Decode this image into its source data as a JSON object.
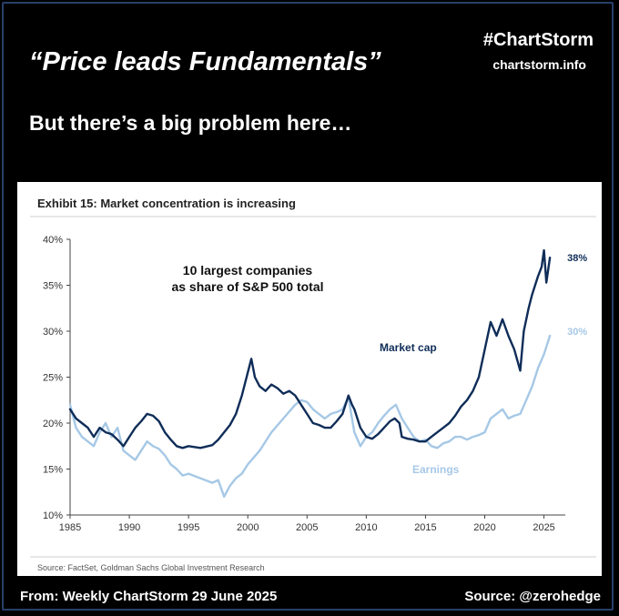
{
  "header": {
    "quote": "“Price leads Fundamentals”",
    "brand": "#ChartStorm",
    "site": "chartstorm.info",
    "subtitle": "But there’s a big problem here…"
  },
  "footer": {
    "left": "From: Weekly ChartStorm 29 June 2025",
    "right": "Source: @zerohedge"
  },
  "colors": {
    "market_cap": "#0f2d58",
    "earnings": "#a6c8e6",
    "axis": "#444444",
    "frame": "#27406a"
  },
  "chart_data": {
    "type": "line",
    "title": "Exhibit 15: Market concentration is increasing",
    "annotation": [
      "10 largest companies",
      "as share of S&P 500 total"
    ],
    "source": "Source: FactSet, Goldman Sachs Global Investment Research",
    "xlim": [
      1985,
      2026.8
    ],
    "ylim": [
      10,
      40
    ],
    "x_ticks": [
      1985,
      1990,
      1995,
      2000,
      2005,
      2010,
      2015,
      2020,
      2025
    ],
    "y_ticks": [
      10,
      15,
      20,
      25,
      30,
      35,
      40
    ],
    "y_tick_labels": [
      "10%",
      "15%",
      "20%",
      "25%",
      "30%",
      "35%",
      "40%"
    ],
    "series": [
      {
        "name": "Market cap",
        "end_label": "38%",
        "points": [
          [
            1985,
            21.5
          ],
          [
            1985.5,
            20.5
          ],
          [
            1986,
            20
          ],
          [
            1986.5,
            19.5
          ],
          [
            1987,
            18.5
          ],
          [
            1987.5,
            19.5
          ],
          [
            1988,
            19
          ],
          [
            1988.5,
            18.8
          ],
          [
            1989,
            18.2
          ],
          [
            1989.5,
            17.5
          ],
          [
            1990,
            18.5
          ],
          [
            1990.5,
            19.5
          ],
          [
            1991,
            20.2
          ],
          [
            1991.5,
            21
          ],
          [
            1992,
            20.8
          ],
          [
            1992.5,
            20.2
          ],
          [
            1993,
            19
          ],
          [
            1993.5,
            18.2
          ],
          [
            1994,
            17.5
          ],
          [
            1994.5,
            17.3
          ],
          [
            1995,
            17.5
          ],
          [
            1996,
            17.3
          ],
          [
            1997,
            17.6
          ],
          [
            1997.5,
            18.2
          ],
          [
            1998,
            19
          ],
          [
            1998.5,
            19.8
          ],
          [
            1999,
            21
          ],
          [
            1999.5,
            23
          ],
          [
            2000,
            25.5
          ],
          [
            2000.3,
            27
          ],
          [
            2000.6,
            25
          ],
          [
            2001,
            24
          ],
          [
            2001.5,
            23.5
          ],
          [
            2002,
            24.2
          ],
          [
            2002.5,
            23.8
          ],
          [
            2003,
            23.2
          ],
          [
            2003.5,
            23.5
          ],
          [
            2004,
            23
          ],
          [
            2004.5,
            22
          ],
          [
            2005,
            21
          ],
          [
            2005.5,
            20
          ],
          [
            2006,
            19.8
          ],
          [
            2006.5,
            19.5
          ],
          [
            2007,
            19.5
          ],
          [
            2007.5,
            20.2
          ],
          [
            2008,
            21
          ],
          [
            2008.5,
            23
          ],
          [
            2008.8,
            22
          ],
          [
            2009,
            21.5
          ],
          [
            2009.5,
            19.5
          ],
          [
            2010,
            18.5
          ],
          [
            2010.5,
            18.3
          ],
          [
            2011,
            18.8
          ],
          [
            2011.5,
            19.5
          ],
          [
            2012,
            20.2
          ],
          [
            2012.4,
            20.5
          ],
          [
            2012.8,
            20
          ],
          [
            2013,
            18.5
          ],
          [
            2013.5,
            18.3
          ],
          [
            2014,
            18.2
          ],
          [
            2014.5,
            18
          ],
          [
            2015,
            18
          ],
          [
            2015.5,
            18.5
          ],
          [
            2016,
            19
          ],
          [
            2016.5,
            19.5
          ],
          [
            2017,
            20
          ],
          [
            2017.5,
            20.8
          ],
          [
            2018,
            21.8
          ],
          [
            2018.5,
            22.5
          ],
          [
            2019,
            23.5
          ],
          [
            2019.5,
            25
          ],
          [
            2020,
            28
          ],
          [
            2020.5,
            31
          ],
          [
            2021,
            29.5
          ],
          [
            2021.5,
            31.3
          ],
          [
            2022,
            29.5
          ],
          [
            2022.5,
            28
          ],
          [
            2023,
            25.7
          ],
          [
            2023.3,
            30
          ],
          [
            2023.7,
            32.5
          ],
          [
            2024,
            34
          ],
          [
            2024.5,
            36
          ],
          [
            2024.8,
            37
          ],
          [
            2025,
            38.8
          ],
          [
            2025.2,
            35.3
          ],
          [
            2025.5,
            38
          ]
        ]
      },
      {
        "name": "Earnings",
        "end_label": "30%",
        "points": [
          [
            1985,
            22
          ],
          [
            1985.5,
            19.5
          ],
          [
            1986,
            18.5
          ],
          [
            1986.5,
            18
          ],
          [
            1987,
            17.5
          ],
          [
            1987.5,
            19
          ],
          [
            1988,
            20
          ],
          [
            1988.5,
            18.5
          ],
          [
            1989,
            19.5
          ],
          [
            1989.5,
            17
          ],
          [
            1990,
            16.5
          ],
          [
            1990.5,
            16
          ],
          [
            1991,
            17
          ],
          [
            1991.5,
            18
          ],
          [
            1992,
            17.5
          ],
          [
            1992.5,
            17.2
          ],
          [
            1993,
            16.5
          ],
          [
            1993.5,
            15.5
          ],
          [
            1994,
            15
          ],
          [
            1994.5,
            14.3
          ],
          [
            1995,
            14.5
          ],
          [
            1996,
            14
          ],
          [
            1997,
            13.5
          ],
          [
            1997.5,
            13.8
          ],
          [
            1998,
            12
          ],
          [
            1998.5,
            13.2
          ],
          [
            1999,
            14
          ],
          [
            1999.5,
            14.5
          ],
          [
            2000,
            15.5
          ],
          [
            2001,
            17
          ],
          [
            2002,
            19
          ],
          [
            2003,
            20.5
          ],
          [
            2004,
            22
          ],
          [
            2004.5,
            22.5
          ],
          [
            2005,
            22.3
          ],
          [
            2005.5,
            21.5
          ],
          [
            2006,
            21
          ],
          [
            2006.5,
            20.5
          ],
          [
            2007,
            21
          ],
          [
            2007.5,
            21.2
          ],
          [
            2008,
            21.5
          ],
          [
            2008.5,
            22.8
          ],
          [
            2008.8,
            20.5
          ],
          [
            2009,
            19
          ],
          [
            2009.5,
            17.5
          ],
          [
            2010,
            18.5
          ],
          [
            2010.5,
            19
          ],
          [
            2011,
            20
          ],
          [
            2011.5,
            20.8
          ],
          [
            2012,
            21.5
          ],
          [
            2012.5,
            22
          ],
          [
            2013,
            20.5
          ],
          [
            2013.5,
            19.5
          ],
          [
            2014,
            18.5
          ],
          [
            2014.5,
            18
          ],
          [
            2015,
            18.2
          ],
          [
            2015.5,
            17.5
          ],
          [
            2016,
            17.3
          ],
          [
            2016.5,
            17.8
          ],
          [
            2017,
            18
          ],
          [
            2017.5,
            18.5
          ],
          [
            2018,
            18.5
          ],
          [
            2018.5,
            18.2
          ],
          [
            2019,
            18.5
          ],
          [
            2019.5,
            18.7
          ],
          [
            2020,
            19
          ],
          [
            2020.5,
            20.5
          ],
          [
            2021,
            21
          ],
          [
            2021.5,
            21.5
          ],
          [
            2022,
            20.5
          ],
          [
            2022.5,
            20.8
          ],
          [
            2023,
            21
          ],
          [
            2023.5,
            22.5
          ],
          [
            2024,
            24
          ],
          [
            2024.5,
            26
          ],
          [
            2025,
            27.5
          ],
          [
            2025.5,
            29.5
          ]
        ]
      }
    ]
  }
}
